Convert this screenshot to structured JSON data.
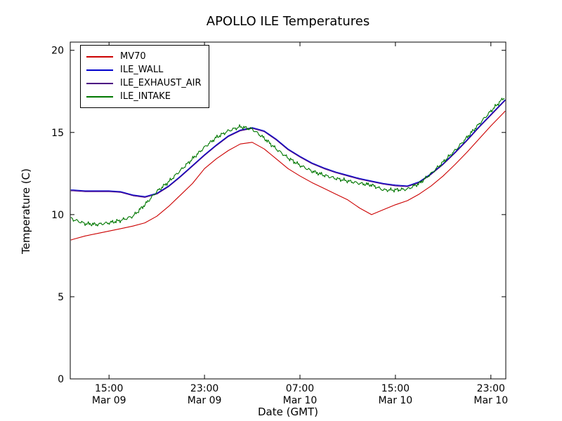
{
  "chart_data": {
    "type": "line",
    "title": "APOLLO ILE Temperatures",
    "xlabel": "Date (GMT)",
    "ylabel": "Temperature (C)",
    "xlim": [
      11.75,
      48.25
    ],
    "ylim": [
      0,
      20.5
    ],
    "grid": false,
    "legend_position": "upper-left",
    "yticks": [
      0,
      5,
      10,
      15,
      20
    ],
    "xticks": [
      {
        "pos": 15,
        "time": "15:00",
        "date": "Mar 09"
      },
      {
        "pos": 23,
        "time": "23:00",
        "date": "Mar 09"
      },
      {
        "pos": 31,
        "time": "07:00",
        "date": "Mar 10"
      },
      {
        "pos": 39,
        "time": "15:00",
        "date": "Mar 10"
      },
      {
        "pos": 47,
        "time": "23:00",
        "date": "Mar 10"
      }
    ],
    "x_unit": "hours since Mar 09 00:00 GMT",
    "x": [
      11.8,
      12,
      13,
      14,
      15,
      16,
      17,
      18,
      19,
      20,
      21,
      22,
      23,
      24,
      25,
      26,
      27,
      28,
      29,
      30,
      31,
      32,
      33,
      34,
      35,
      36,
      37,
      38,
      39,
      40,
      41,
      42,
      43,
      44,
      45,
      46,
      47,
      48,
      48.2
    ],
    "series": [
      {
        "name": "MV70",
        "color": "#cc0000",
        "zorder": 2,
        "noise": 0,
        "values": [
          8.45,
          8.5,
          8.7,
          8.85,
          9.0,
          9.15,
          9.3,
          9.5,
          9.9,
          10.5,
          11.2,
          11.9,
          12.8,
          13.4,
          13.9,
          14.3,
          14.4,
          14.0,
          13.4,
          12.8,
          12.35,
          11.95,
          11.6,
          11.25,
          10.9,
          10.4,
          10.0,
          10.3,
          10.6,
          10.85,
          11.25,
          11.75,
          12.35,
          13.05,
          13.8,
          14.6,
          15.4,
          16.15,
          16.3
        ]
      },
      {
        "name": "ILE_WALL",
        "color": "#0000cc",
        "zorder": 3,
        "noise": 0,
        "values": [
          11.5,
          11.5,
          11.45,
          11.45,
          11.45,
          11.4,
          11.2,
          11.1,
          11.3,
          11.75,
          12.35,
          13.0,
          13.65,
          14.25,
          14.8,
          15.15,
          15.3,
          15.1,
          14.6,
          14.0,
          13.55,
          13.15,
          12.85,
          12.6,
          12.4,
          12.2,
          12.05,
          11.9,
          11.8,
          11.75,
          12.0,
          12.5,
          13.1,
          13.8,
          14.55,
          15.35,
          16.1,
          16.85,
          17.0
        ]
      },
      {
        "name": "ILE_EXHAUST_AIR",
        "color": "#4b0082",
        "zorder": 1,
        "noise": 0,
        "values": [
          11.45,
          11.45,
          11.4,
          11.4,
          11.4,
          11.35,
          11.15,
          11.05,
          11.25,
          11.7,
          12.3,
          12.95,
          13.6,
          14.2,
          14.75,
          15.1,
          15.25,
          15.05,
          14.55,
          13.95,
          13.5,
          13.1,
          12.8,
          12.55,
          12.35,
          12.15,
          12.0,
          11.85,
          11.75,
          11.7,
          11.95,
          12.45,
          13.05,
          13.75,
          14.5,
          15.3,
          16.05,
          16.8,
          16.95
        ]
      },
      {
        "name": "ILE_INTAKE",
        "color": "#007700",
        "zorder": 4,
        "noise": 0.13,
        "values": [
          9.8,
          9.7,
          9.45,
          9.4,
          9.5,
          9.65,
          9.9,
          10.6,
          11.4,
          12.0,
          12.7,
          13.4,
          14.1,
          14.7,
          15.1,
          15.35,
          15.2,
          14.65,
          14.0,
          13.45,
          13.0,
          12.65,
          12.4,
          12.2,
          12.05,
          11.9,
          11.8,
          11.5,
          11.5,
          11.55,
          11.9,
          12.5,
          13.2,
          13.9,
          14.7,
          15.5,
          16.3,
          17.05,
          17.15
        ]
      }
    ]
  }
}
